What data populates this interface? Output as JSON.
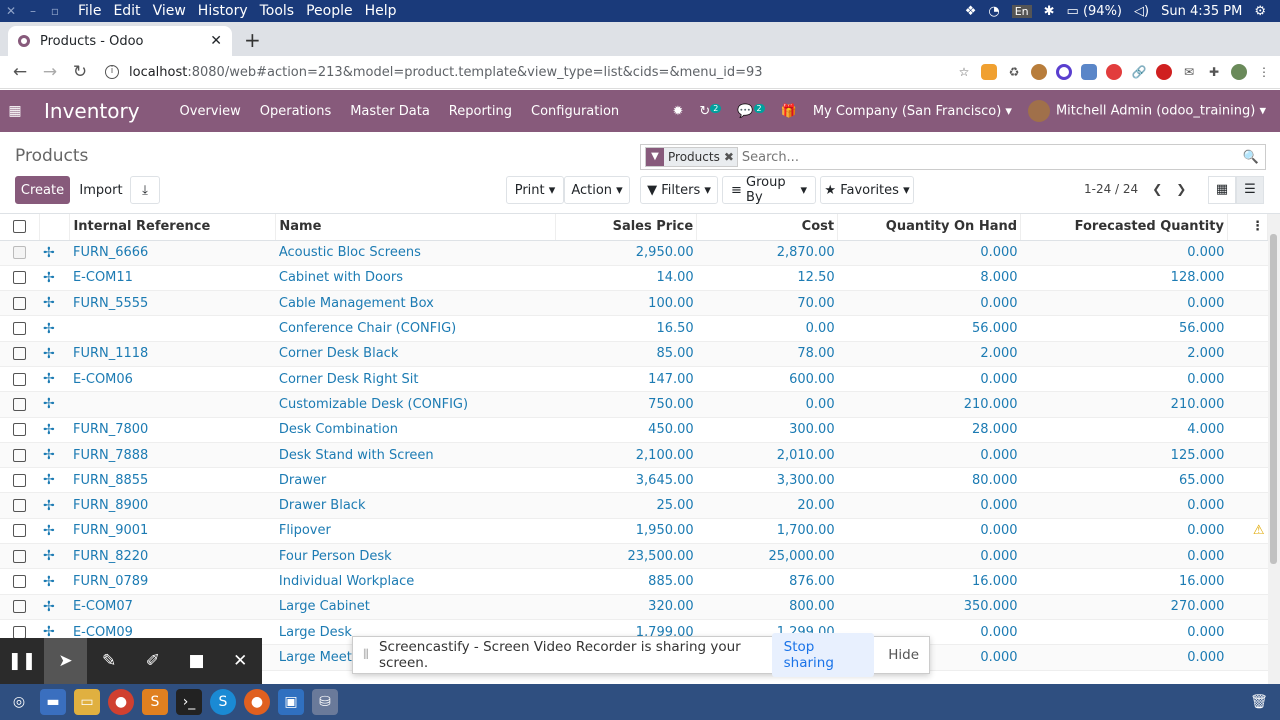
{
  "system": {
    "menus": [
      "File",
      "Edit",
      "View",
      "History",
      "Tools",
      "People",
      "Help"
    ],
    "lang": "En",
    "battery": "(94%)",
    "clock": "Sun  4:35 PM"
  },
  "browser": {
    "tab_title": "Products - Odoo",
    "url_host": "localhost",
    "url_path": ":8080/web#action=213&model=product.template&view_type=list&cids=&menu_id=93"
  },
  "navbar": {
    "app_name": "Inventory",
    "menus": [
      "Overview",
      "Operations",
      "Master Data",
      "Reporting",
      "Configuration"
    ],
    "activity_count": "2",
    "message_count": "2",
    "company": "My Company (San Francisco)",
    "user": "Mitchell Admin (odoo_training)"
  },
  "control_panel": {
    "breadcrumb": "Products",
    "create_label": "Create",
    "import_label": "Import",
    "print_label": "Print",
    "action_label": "Action",
    "filters_label": "Filters",
    "groupby_label": "Group By",
    "favorites_label": "Favorites",
    "facet_value": "Products",
    "search_placeholder": "Search...",
    "pager": "1-24 / 24"
  },
  "table": {
    "columns": [
      "Internal Reference",
      "Name",
      "Sales Price",
      "Cost",
      "Quantity On Hand",
      "Forecasted Quantity"
    ],
    "rows": [
      {
        "ref": "FURN_6666",
        "name": "Acoustic Bloc Screens",
        "price": "2,950.00",
        "cost": "2,870.00",
        "onhand": "0.000",
        "forecast": "0.000"
      },
      {
        "ref": "E-COM11",
        "name": "Cabinet with Doors",
        "price": "14.00",
        "cost": "12.50",
        "onhand": "8.000",
        "forecast": "128.000"
      },
      {
        "ref": "FURN_5555",
        "name": "Cable Management Box",
        "price": "100.00",
        "cost": "70.00",
        "onhand": "0.000",
        "forecast": "0.000"
      },
      {
        "ref": "",
        "name": "Conference Chair (CONFIG)",
        "price": "16.50",
        "cost": "0.00",
        "onhand": "56.000",
        "forecast": "56.000"
      },
      {
        "ref": "FURN_1118",
        "name": "Corner Desk Black",
        "price": "85.00",
        "cost": "78.00",
        "onhand": "2.000",
        "forecast": "2.000"
      },
      {
        "ref": "E-COM06",
        "name": "Corner Desk Right Sit",
        "price": "147.00",
        "cost": "600.00",
        "onhand": "0.000",
        "forecast": "0.000"
      },
      {
        "ref": "",
        "name": "Customizable Desk (CONFIG)",
        "price": "750.00",
        "cost": "0.00",
        "onhand": "210.000",
        "forecast": "210.000"
      },
      {
        "ref": "FURN_7800",
        "name": "Desk Combination",
        "price": "450.00",
        "cost": "300.00",
        "onhand": "28.000",
        "forecast": "4.000"
      },
      {
        "ref": "FURN_7888",
        "name": "Desk Stand with Screen",
        "price": "2,100.00",
        "cost": "2,010.00",
        "onhand": "0.000",
        "forecast": "125.000"
      },
      {
        "ref": "FURN_8855",
        "name": "Drawer",
        "price": "3,645.00",
        "cost": "3,300.00",
        "onhand": "80.000",
        "forecast": "65.000"
      },
      {
        "ref": "FURN_8900",
        "name": "Drawer Black",
        "price": "25.00",
        "cost": "20.00",
        "onhand": "0.000",
        "forecast": "0.000"
      },
      {
        "ref": "FURN_9001",
        "name": "Flipover",
        "price": "1,950.00",
        "cost": "1,700.00",
        "onhand": "0.000",
        "forecast": "0.000"
      },
      {
        "ref": "FURN_8220",
        "name": "Four Person Desk",
        "price": "23,500.00",
        "cost": "25,000.00",
        "onhand": "0.000",
        "forecast": "0.000"
      },
      {
        "ref": "FURN_0789",
        "name": "Individual Workplace",
        "price": "885.00",
        "cost": "876.00",
        "onhand": "16.000",
        "forecast": "16.000"
      },
      {
        "ref": "E-COM07",
        "name": "Large Cabinet",
        "price": "320.00",
        "cost": "800.00",
        "onhand": "350.000",
        "forecast": "270.000"
      },
      {
        "ref": "E-COM09",
        "name": "Large Desk",
        "price": "1,799.00",
        "cost": "1,299.00",
        "onhand": "0.000",
        "forecast": "0.000"
      },
      {
        "ref": "",
        "name": "Large Meetin",
        "price": "",
        "cost": "",
        "onhand": "0.000",
        "forecast": "0.000"
      }
    ]
  },
  "share_bar": {
    "message": "Screencastify - Screen Video Recorder is sharing your screen.",
    "stop_label": "Stop sharing",
    "hide_label": "Hide"
  }
}
